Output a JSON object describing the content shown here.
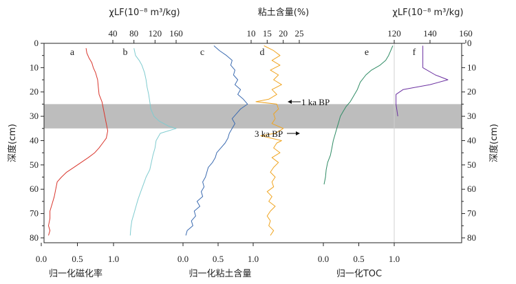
{
  "chart_data": {
    "type": "line",
    "y_axis": {
      "label_left": "深度(cm)",
      "label_right": "深度(cm)",
      "range": [
        0,
        82
      ],
      "ticks": [
        0,
        10,
        20,
        30,
        40,
        50,
        60,
        70,
        80
      ],
      "inverted": true
    },
    "shaded_band": {
      "from": 25,
      "to": 35,
      "color": "#bdbdbd"
    },
    "top_axes": [
      {
        "label": "χLF(10⁻⁸ m³/kg)",
        "ticks": [
          "40",
          "80",
          "120",
          "160"
        ]
      },
      {
        "label": "粘土含量(%)",
        "ticks": [
          "10",
          "15",
          "20",
          "25"
        ]
      },
      {
        "label": "χLF(10⁻⁸ m³/kg)",
        "ticks": [
          "120",
          "140",
          "160"
        ]
      }
    ],
    "bottom_axes": [
      {
        "label": "归一化磁化率",
        "ticks": [
          "0.0",
          "0.5",
          "1.0"
        ]
      },
      {
        "label": "归一化粘土含量",
        "ticks": [
          "0.0",
          "0.5",
          "1.0"
        ]
      },
      {
        "label": "归一化TOC",
        "ticks": [
          "0.0",
          "0.5",
          "1.0"
        ]
      }
    ],
    "series": [
      {
        "name": "a",
        "color": "#d9342b",
        "unit": "normalized",
        "points": [
          [
            0.62,
            2
          ],
          [
            0.63,
            4
          ],
          [
            0.66,
            6
          ],
          [
            0.7,
            8
          ],
          [
            0.72,
            10
          ],
          [
            0.75,
            12
          ],
          [
            0.78,
            15
          ],
          [
            0.79,
            18
          ],
          [
            0.8,
            21
          ],
          [
            0.84,
            24
          ],
          [
            0.86,
            27
          ],
          [
            0.88,
            30
          ],
          [
            0.9,
            33
          ],
          [
            0.92,
            36
          ],
          [
            0.9,
            39
          ],
          [
            0.85,
            41
          ],
          [
            0.8,
            43
          ],
          [
            0.74,
            45
          ],
          [
            0.65,
            47
          ],
          [
            0.55,
            49
          ],
          [
            0.45,
            51
          ],
          [
            0.35,
            53
          ],
          [
            0.28,
            55
          ],
          [
            0.22,
            57
          ],
          [
            0.2,
            60
          ],
          [
            0.18,
            63
          ],
          [
            0.15,
            66
          ],
          [
            0.12,
            69
          ],
          [
            0.12,
            72
          ],
          [
            0.1,
            75
          ],
          [
            0.12,
            77
          ],
          [
            0.1,
            79
          ]
        ]
      },
      {
        "name": "b",
        "color": "#7fcbcf",
        "unit": "χLF",
        "points": [
          [
            80,
            2
          ],
          [
            83,
            5
          ],
          [
            90,
            7
          ],
          [
            95,
            9
          ],
          [
            100,
            12
          ],
          [
            103,
            15
          ],
          [
            105,
            18
          ],
          [
            108,
            21
          ],
          [
            110,
            24
          ],
          [
            112,
            27
          ],
          [
            118,
            30
          ],
          [
            128,
            32
          ],
          [
            145,
            34
          ],
          [
            160,
            35
          ],
          [
            130,
            37
          ],
          [
            122,
            40
          ],
          [
            120,
            43
          ],
          [
            116,
            46
          ],
          [
            113,
            49
          ],
          [
            110,
            52
          ],
          [
            103,
            55
          ],
          [
            98,
            58
          ],
          [
            93,
            61
          ],
          [
            88,
            64
          ],
          [
            84,
            67
          ],
          [
            80,
            70
          ],
          [
            76,
            73
          ],
          [
            74,
            76
          ],
          [
            73,
            79
          ]
        ]
      },
      {
        "name": "c",
        "color": "#3a6ab0",
        "unit": "normalized",
        "points": [
          [
            0.44,
            1
          ],
          [
            0.52,
            3
          ],
          [
            0.62,
            5
          ],
          [
            0.7,
            7
          ],
          [
            0.68,
            9
          ],
          [
            0.74,
            11
          ],
          [
            0.72,
            13
          ],
          [
            0.78,
            15
          ],
          [
            0.74,
            17
          ],
          [
            0.82,
            19
          ],
          [
            0.78,
            21
          ],
          [
            0.86,
            23
          ],
          [
            0.92,
            25
          ],
          [
            0.82,
            27
          ],
          [
            0.76,
            29
          ],
          [
            0.7,
            31
          ],
          [
            0.74,
            33
          ],
          [
            0.7,
            35
          ],
          [
            0.66,
            37
          ],
          [
            0.64,
            39
          ],
          [
            0.6,
            41
          ],
          [
            0.54,
            43
          ],
          [
            0.48,
            45
          ],
          [
            0.46,
            47
          ],
          [
            0.42,
            49
          ],
          [
            0.36,
            51
          ],
          [
            0.34,
            53
          ],
          [
            0.32,
            55
          ],
          [
            0.28,
            57
          ],
          [
            0.3,
            59
          ],
          [
            0.26,
            61
          ],
          [
            0.28,
            63
          ],
          [
            0.2,
            65
          ],
          [
            0.24,
            67
          ],
          [
            0.16,
            69
          ],
          [
            0.18,
            71
          ],
          [
            0.12,
            73
          ],
          [
            0.14,
            75
          ],
          [
            0.06,
            77
          ],
          [
            0.04,
            79
          ]
        ]
      },
      {
        "name": "d",
        "color": "#f0a41f",
        "unit": "%",
        "points": [
          [
            14.0,
            1
          ],
          [
            17.0,
            3
          ],
          [
            19.0,
            5
          ],
          [
            16.5,
            7
          ],
          [
            19.0,
            9
          ],
          [
            16.0,
            11
          ],
          [
            18.5,
            13
          ],
          [
            17.0,
            15
          ],
          [
            19.5,
            17
          ],
          [
            16.5,
            19
          ],
          [
            18.0,
            21
          ],
          [
            15.5,
            23
          ],
          [
            11.5,
            24
          ],
          [
            18.0,
            25
          ],
          [
            18.5,
            27
          ],
          [
            17.0,
            29
          ],
          [
            17.5,
            31
          ],
          [
            16.5,
            33
          ],
          [
            20.0,
            35
          ],
          [
            17.5,
            37
          ],
          [
            13.0,
            38
          ],
          [
            19.5,
            40
          ],
          [
            18.0,
            41
          ],
          [
            17.0,
            43
          ],
          [
            19.0,
            45
          ],
          [
            16.5,
            47
          ],
          [
            18.5,
            49
          ],
          [
            17.0,
            51
          ],
          [
            16.0,
            53
          ],
          [
            17.5,
            55
          ],
          [
            16.5,
            57
          ],
          [
            17.0,
            59
          ],
          [
            15.0,
            61
          ],
          [
            16.5,
            63
          ],
          [
            15.5,
            65
          ],
          [
            17.5,
            67
          ],
          [
            16.0,
            69
          ],
          [
            15.0,
            71
          ],
          [
            16.0,
            73
          ],
          [
            15.5,
            75
          ],
          [
            17.0,
            77
          ],
          [
            16.0,
            79
          ]
        ]
      },
      {
        "name": "e",
        "color": "#2e8b64",
        "unit": "normalized",
        "points": [
          [
            0.98,
            1
          ],
          [
            0.95,
            3
          ],
          [
            0.92,
            5
          ],
          [
            0.88,
            7
          ],
          [
            0.8,
            9
          ],
          [
            0.68,
            11
          ],
          [
            0.6,
            13
          ],
          [
            0.52,
            16
          ],
          [
            0.48,
            19
          ],
          [
            0.42,
            22
          ],
          [
            0.38,
            24
          ],
          [
            0.32,
            26
          ],
          [
            0.28,
            28
          ],
          [
            0.24,
            30
          ],
          [
            0.22,
            32
          ],
          [
            0.2,
            34
          ],
          [
            0.18,
            36
          ],
          [
            0.16,
            38
          ],
          [
            0.14,
            40
          ],
          [
            0.12,
            43
          ],
          [
            0.1,
            46
          ],
          [
            0.06,
            49
          ],
          [
            0.04,
            52
          ],
          [
            0.03,
            55
          ],
          [
            0.01,
            58
          ]
        ]
      },
      {
        "name": "f",
        "color": "#6a2fa0",
        "unit": "χLF",
        "points": [
          [
            136,
            1
          ],
          [
            136,
            5
          ],
          [
            136,
            10
          ],
          [
            143,
            13
          ],
          [
            150,
            15
          ],
          [
            140,
            17
          ],
          [
            125,
            19
          ],
          [
            121,
            21
          ],
          [
            121,
            25
          ],
          [
            122,
            30
          ]
        ]
      }
    ],
    "annotations": [
      {
        "text": "1 ka BP",
        "depth": 24
      },
      {
        "text": "3 ka BP",
        "depth": 36
      }
    ]
  }
}
